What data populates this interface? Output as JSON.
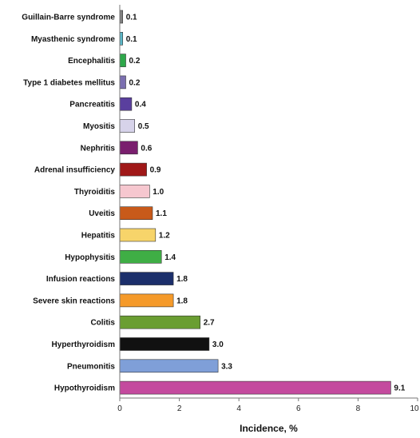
{
  "chart_data": {
    "type": "bar",
    "orientation": "horizontal",
    "categories": [
      "Guillain-Barre syndrome",
      "Myasthenic syndrome",
      "Encephalitis",
      "Type 1 diabetes mellitus",
      "Pancreatitis",
      "Myositis",
      "Nephritis",
      "Adrenal insufficiency",
      "Thyroiditis",
      "Uveitis",
      "Hepatitis",
      "Hypophysitis",
      "Infusion reactions",
      "Severe skin reactions",
      "Colitis",
      "Hyperthyroidism",
      "Pneumonitis",
      "Hypothyroidism"
    ],
    "values": [
      0.1,
      0.1,
      0.2,
      0.2,
      0.4,
      0.5,
      0.6,
      0.9,
      1.0,
      1.1,
      1.2,
      1.4,
      1.8,
      1.8,
      2.7,
      3.0,
      3.3,
      9.1
    ],
    "value_labels": [
      "0.1",
      "0.1",
      "0.2",
      "0.2",
      "0.4",
      "0.5",
      "0.6",
      "0.9",
      "1.0",
      "1.1",
      "1.2",
      "1.4",
      "1.8",
      "1.8",
      "2.7",
      "3.0",
      "3.3",
      "9.1"
    ],
    "colors": [
      "#808080",
      "#5bb8c9",
      "#2ea84a",
      "#7b6fb0",
      "#5a3f9e",
      "#d7d3ea",
      "#7a1f6e",
      "#a01818",
      "#f6c7cf",
      "#c85a1a",
      "#f7d46a",
      "#3fae45",
      "#1c2f6b",
      "#f59a2a",
      "#6a9e32",
      "#111111",
      "#7f9fd8",
      "#c44a9e"
    ],
    "xlabel": "Incidence, %",
    "ylabel": "",
    "title": "",
    "xlim": [
      0,
      10
    ],
    "xticks": [
      "0",
      "2",
      "4",
      "6",
      "8",
      "10"
    ],
    "grid": false
  }
}
